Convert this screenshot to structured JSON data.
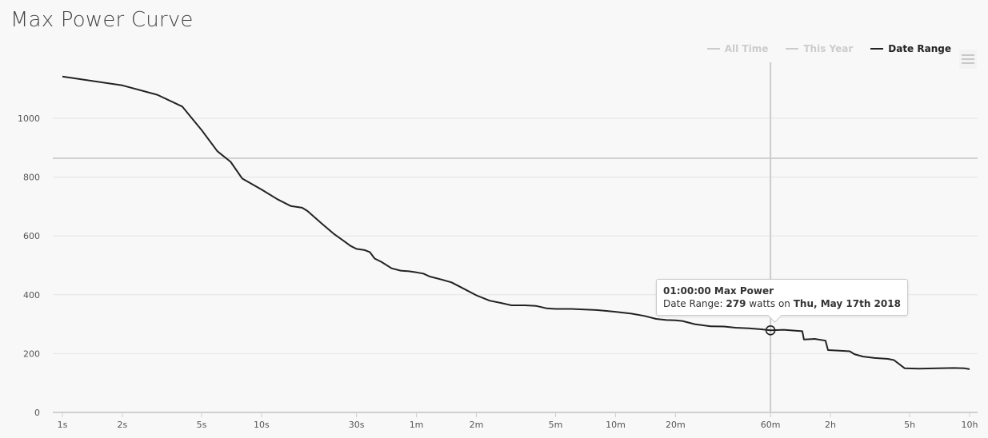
{
  "title": "Max Power Curve",
  "legend": [
    {
      "label": "All Time",
      "color": "#cccccc",
      "active": false
    },
    {
      "label": "This Year",
      "color": "#cccccc",
      "active": false
    },
    {
      "label": "Date Range",
      "color": "#222222",
      "active": true
    }
  ],
  "menu_icon": "hamburger-menu-icon",
  "tooltip": {
    "title": "01:00:00 Max Power",
    "series": "Date Range:",
    "value": "279",
    "unit": "watts on",
    "date": "Thu, May 17th 2018"
  },
  "colors": {
    "line": "#222222",
    "grid": "#e3e3e3",
    "crosshair": "#cccccc",
    "background": "#f8f8f8"
  },
  "chart_data": {
    "type": "line",
    "title": "Max Power Curve",
    "x_scale": "log",
    "x_unit": "seconds",
    "ylim": [
      0,
      1100
    ],
    "grid": true,
    "legend_position": "top-right",
    "y_ticks": [
      0,
      200,
      400,
      600,
      800,
      1000
    ],
    "x_ticks": [
      {
        "label": "1s",
        "value": 1
      },
      {
        "label": "2s",
        "value": 2
      },
      {
        "label": "5s",
        "value": 5
      },
      {
        "label": "10s",
        "value": 10
      },
      {
        "label": "30s",
        "value": 30
      },
      {
        "label": "1m",
        "value": 60
      },
      {
        "label": "2m",
        "value": 120
      },
      {
        "label": "5m",
        "value": 300
      },
      {
        "label": "10m",
        "value": 600
      },
      {
        "label": "20m",
        "value": 1200
      },
      {
        "label": "60m",
        "value": 3600
      },
      {
        "label": "2h",
        "value": 7200
      },
      {
        "label": "5h",
        "value": 18000
      },
      {
        "label": "10h",
        "value": 36000
      }
    ],
    "series": [
      {
        "name": "Date Range",
        "points": [
          [
            1,
            1142
          ],
          [
            2,
            1112
          ],
          [
            3,
            1080
          ],
          [
            4,
            1040
          ],
          [
            5,
            960
          ],
          [
            6,
            888
          ],
          [
            7,
            852
          ],
          [
            8,
            795
          ],
          [
            10,
            758
          ],
          [
            12,
            725
          ],
          [
            14,
            702
          ],
          [
            16,
            696
          ],
          [
            17,
            685
          ],
          [
            20,
            643
          ],
          [
            23,
            608
          ],
          [
            26,
            582
          ],
          [
            28,
            566
          ],
          [
            30,
            556
          ],
          [
            33,
            552
          ],
          [
            35,
            545
          ],
          [
            37,
            523
          ],
          [
            40,
            512
          ],
          [
            45,
            490
          ],
          [
            50,
            482
          ],
          [
            55,
            480
          ],
          [
            60,
            476
          ],
          [
            65,
            472
          ],
          [
            70,
            462
          ],
          [
            80,
            452
          ],
          [
            90,
            442
          ],
          [
            100,
            426
          ],
          [
            120,
            398
          ],
          [
            140,
            380
          ],
          [
            160,
            372
          ],
          [
            180,
            364
          ],
          [
            210,
            364
          ],
          [
            240,
            362
          ],
          [
            270,
            354
          ],
          [
            300,
            352
          ],
          [
            360,
            352
          ],
          [
            420,
            350
          ],
          [
            480,
            348
          ],
          [
            540,
            345
          ],
          [
            600,
            342
          ],
          [
            720,
            336
          ],
          [
            840,
            328
          ],
          [
            960,
            318
          ],
          [
            1080,
            314
          ],
          [
            1200,
            313
          ],
          [
            1300,
            311
          ],
          [
            1500,
            300
          ],
          [
            1800,
            293
          ],
          [
            2100,
            292
          ],
          [
            2400,
            288
          ],
          [
            2800,
            286
          ],
          [
            3200,
            283
          ],
          [
            3600,
            279
          ],
          [
            4200,
            281
          ],
          [
            4800,
            278
          ],
          [
            5200,
            276
          ],
          [
            5300,
            248
          ],
          [
            6000,
            250
          ],
          [
            6800,
            244
          ],
          [
            7000,
            212
          ],
          [
            8000,
            210
          ],
          [
            9000,
            208
          ],
          [
            9500,
            198
          ],
          [
            10500,
            190
          ],
          [
            12000,
            185
          ],
          [
            14000,
            182
          ],
          [
            15000,
            178
          ],
          [
            17000,
            150
          ],
          [
            20000,
            149
          ],
          [
            25000,
            150
          ],
          [
            30000,
            151
          ],
          [
            34000,
            150
          ],
          [
            36000,
            147
          ]
        ]
      }
    ],
    "highlight": {
      "x": 3600,
      "y": 279
    }
  }
}
